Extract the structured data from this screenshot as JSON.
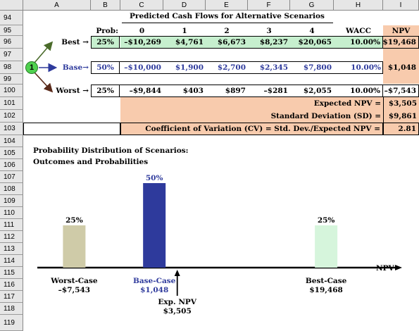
{
  "columns": [
    "A",
    "B",
    "C",
    "D",
    "E",
    "F",
    "G",
    "H",
    "I"
  ],
  "rows": [
    "94",
    "95",
    "96",
    "97",
    "98",
    "99",
    "100",
    "101",
    "102",
    "103",
    "104",
    "105",
    "106",
    "107",
    "108",
    "109",
    "110",
    "111",
    "112",
    "113",
    "114",
    "115",
    "116",
    "117",
    "118",
    "119"
  ],
  "table": {
    "title": "Predicted Cash Flows for Alternative Scenarios",
    "header": {
      "prob": "Prob:",
      "years": [
        "0",
        "1",
        "2",
        "3",
        "4"
      ],
      "wacc": "WACC",
      "npv": "NPV"
    },
    "scenarios": [
      {
        "label": "Best →",
        "prob": "25%",
        "cf": [
          "–$10,269",
          "$4,761",
          "$6,673",
          "$8,237",
          "$20,065"
        ],
        "wacc": "10.00%",
        "npv": "$19,468"
      },
      {
        "label": "Base→",
        "prob": "50%",
        "cf": [
          "–$10,000",
          "$1,900",
          "$2,700",
          "$2,345",
          "$7,800"
        ],
        "wacc": "10.00%",
        "npv": "$1,048"
      },
      {
        "label": "Worst →",
        "prob": "25%",
        "cf": [
          "–$9,844",
          "$403",
          "$897",
          "–$281",
          "$2,055"
        ],
        "wacc": "10.00%",
        "npv": "–$7,543"
      }
    ],
    "badge": "1",
    "summary": [
      {
        "label": "Expected NPV =",
        "value": "$3,505"
      },
      {
        "label": "Standard Deviation  (SD) =",
        "value": "$9,861"
      },
      {
        "label": "Coefficient of Variation (CV) = Std. Dev./Expected NPV =",
        "value": "2.81"
      }
    ]
  },
  "chart_data": {
    "type": "bar",
    "title": "Probability Distribution of Scenarios:",
    "subtitle": "Outcomes and Probabilities",
    "xlabel": "NPV",
    "categories": [
      "Worst-Case",
      "Base-Case",
      "Best-Case"
    ],
    "npv": [
      -7543,
      1048,
      19468
    ],
    "npv_labels": [
      "–$7,543",
      "$1,048",
      "$19,468"
    ],
    "values": [
      25,
      50,
      25
    ],
    "value_labels": [
      "25%",
      "50%",
      "25%"
    ],
    "colors": [
      "#cfcba8",
      "#2e3a9c",
      "#d6f5dc"
    ],
    "expected": {
      "label": "Exp. NPV",
      "value": 3505,
      "value_label": "$3,505"
    }
  }
}
